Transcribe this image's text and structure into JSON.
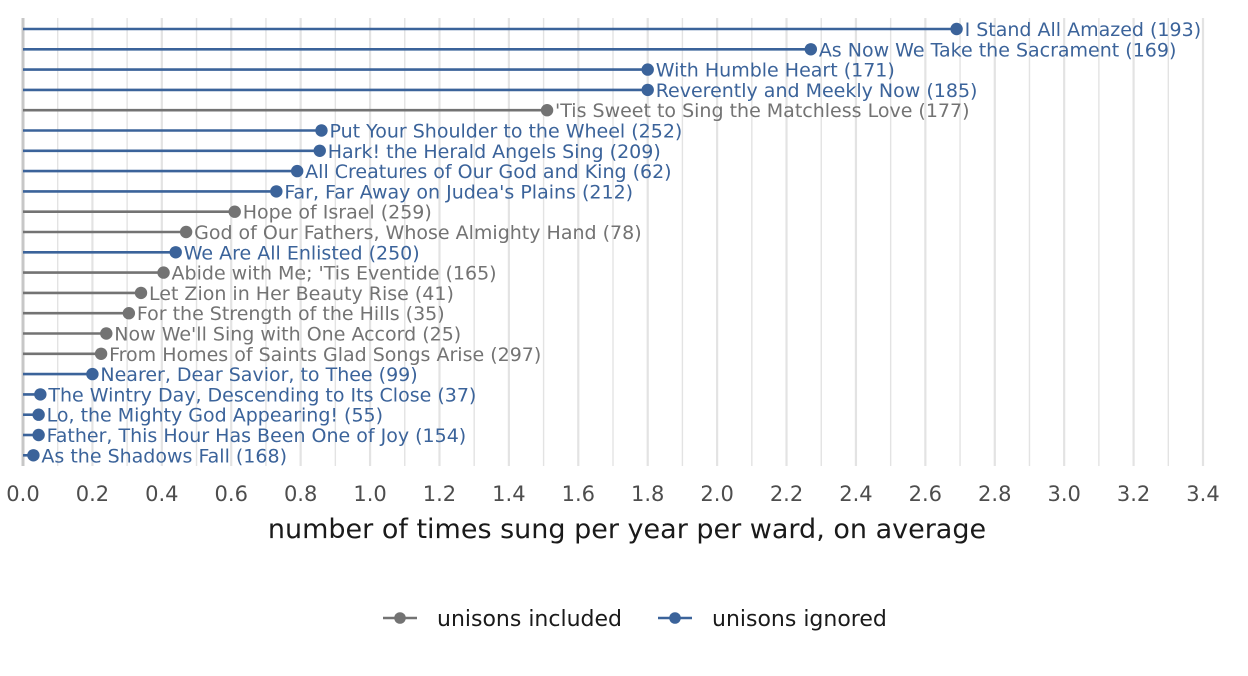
{
  "chart_data": {
    "type": "lollipop",
    "orientation": "horizontal",
    "title": "",
    "xlabel": "number of times sung per year per ward, on average",
    "ylabel": "",
    "xlim": [
      0,
      3.4
    ],
    "xticks": [
      0.0,
      0.2,
      0.4,
      0.6,
      0.8,
      1.0,
      1.2,
      1.4,
      1.6,
      1.8,
      2.0,
      2.2,
      2.4,
      2.6,
      2.8,
      3.0,
      3.2,
      3.4
    ],
    "xtick_labels": [
      "0.0",
      "0.2",
      "0.4",
      "0.6",
      "0.8",
      "1.0",
      "1.2",
      "1.4",
      "1.6",
      "1.8",
      "2.0",
      "2.2",
      "2.4",
      "2.6",
      "2.8",
      "3.0",
      "3.2",
      "3.4"
    ],
    "grid": true,
    "legend_position": "bottom",
    "colors": {
      "unisons_included": "#737373",
      "unisons_ignored": "#3b639a",
      "grid": "#e3e3e3",
      "axis_text": "#4d4d4d",
      "axis_title": "#1a1a1a"
    },
    "series": [
      {
        "key": "unisons_included",
        "name": "unisons included"
      },
      {
        "key": "unisons_ignored",
        "name": "unisons ignored"
      }
    ],
    "points": [
      {
        "label": "I Stand All Amazed (193)",
        "value": 2.69,
        "series": "unisons_ignored"
      },
      {
        "label": "As Now We Take the Sacrament (169)",
        "value": 2.27,
        "series": "unisons_ignored"
      },
      {
        "label": "With Humble Heart (171)",
        "value": 1.8,
        "series": "unisons_ignored"
      },
      {
        "label": "Reverently and Meekly Now (185)",
        "value": 1.8,
        "series": "unisons_ignored"
      },
      {
        "label": "'Tis Sweet to Sing the Matchless Love (177)",
        "value": 1.51,
        "series": "unisons_included"
      },
      {
        "label": "Put Your Shoulder to the Wheel (252)",
        "value": 0.86,
        "series": "unisons_ignored"
      },
      {
        "label": "Hark! the Herald Angels Sing (209)",
        "value": 0.855,
        "series": "unisons_ignored"
      },
      {
        "label": "All Creatures of Our God and King (62)",
        "value": 0.79,
        "series": "unisons_ignored"
      },
      {
        "label": "Far, Far Away on Judea's Plains (212)",
        "value": 0.73,
        "series": "unisons_ignored"
      },
      {
        "label": "Hope of Israel (259)",
        "value": 0.61,
        "series": "unisons_included"
      },
      {
        "label": "God of Our Fathers, Whose Almighty Hand (78)",
        "value": 0.47,
        "series": "unisons_included"
      },
      {
        "label": "We Are All Enlisted (250)",
        "value": 0.44,
        "series": "unisons_ignored"
      },
      {
        "label": "Abide with Me; 'Tis Eventide (165)",
        "value": 0.405,
        "series": "unisons_included"
      },
      {
        "label": "Let Zion in Her Beauty Rise (41)",
        "value": 0.34,
        "series": "unisons_included"
      },
      {
        "label": "For the Strength of the Hills (35)",
        "value": 0.305,
        "series": "unisons_included"
      },
      {
        "label": "Now We'll Sing with One Accord (25)",
        "value": 0.24,
        "series": "unisons_included"
      },
      {
        "label": "From Homes of Saints Glad Songs Arise (297)",
        "value": 0.225,
        "series": "unisons_included"
      },
      {
        "label": "Nearer, Dear Savior, to Thee (99)",
        "value": 0.2,
        "series": "unisons_ignored"
      },
      {
        "label": "The Wintry Day, Descending to Its Close (37)",
        "value": 0.05,
        "series": "unisons_ignored"
      },
      {
        "label": "Lo, the Mighty God Appearing! (55)",
        "value": 0.045,
        "series": "unisons_ignored"
      },
      {
        "label": "Father, This Hour Has Been One of Joy (154)",
        "value": 0.045,
        "series": "unisons_ignored"
      },
      {
        "label": "As the Shadows Fall (168)",
        "value": 0.03,
        "series": "unisons_ignored"
      }
    ]
  }
}
